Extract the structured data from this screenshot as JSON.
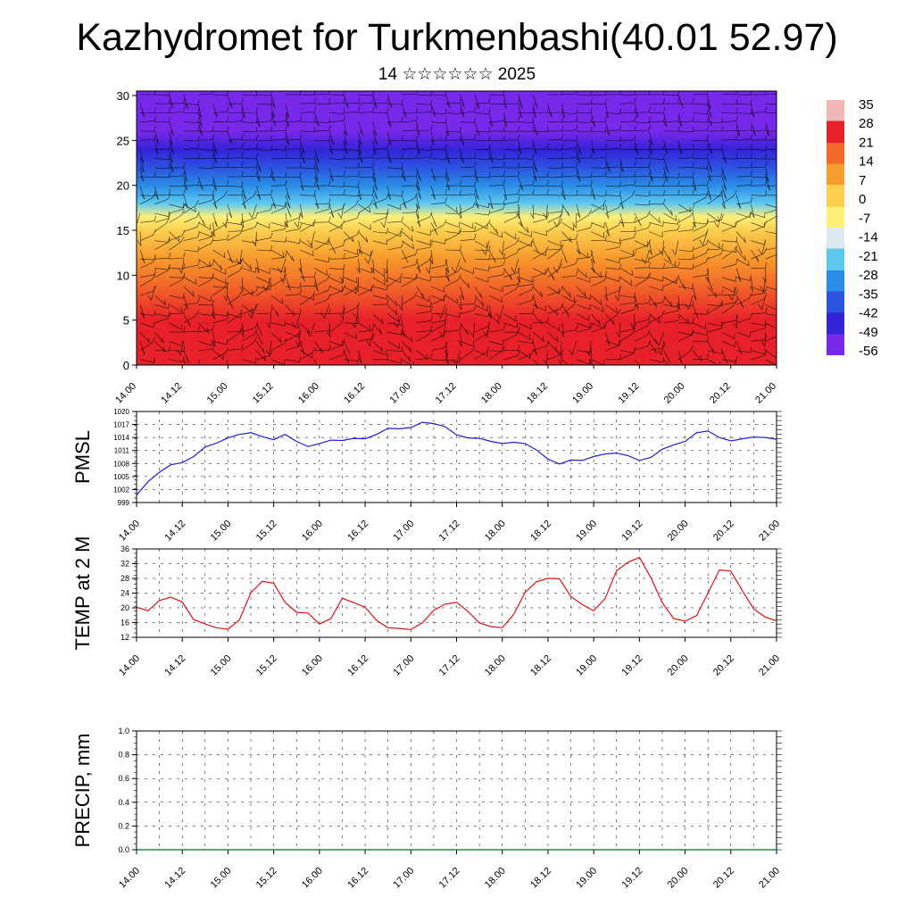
{
  "page": {
    "title": "Kazhydromet for Turkmenbashi(40.01 52.97)",
    "subtitle": "14 ☆☆☆☆☆☆ 2025"
  },
  "chart_data": [
    {
      "type": "heatmap",
      "id": "cross_section",
      "title": "",
      "ylim": [
        0,
        30.5
      ],
      "yticks": [
        "0",
        "5",
        "10",
        "15",
        "20",
        "25",
        "30"
      ],
      "xticks": [
        "14.00",
        "14.12",
        "15.00",
        "15.12",
        "16.00",
        "16.12",
        "17.00",
        "17.12",
        "18.00",
        "18.12",
        "19.00",
        "19.12",
        "20.00",
        "20.12",
        "21.00"
      ],
      "colorbar": {
        "labels": [
          "35",
          "28",
          "21",
          "14",
          "7",
          "0",
          "-7",
          "-14",
          "-21",
          "-28",
          "-35",
          "-42",
          "-49",
          "-56"
        ],
        "colors": [
          "#f2b8b8",
          "#e8202a",
          "#f26a2a",
          "#f79c2e",
          "#fccf50",
          "#fff07a",
          "#dce8ef",
          "#5ec8ef",
          "#2a8ce6",
          "#2c52e0",
          "#3424d8",
          "#7828e8"
        ]
      },
      "profile_by_height": [
        {
          "z": 0,
          "value": 30
        },
        {
          "z": 5,
          "value": 26
        },
        {
          "z": 9,
          "value": 20
        },
        {
          "z": 12,
          "value": 8
        },
        {
          "z": 15,
          "value": 0
        },
        {
          "z": 16.5,
          "value": -8
        },
        {
          "z": 18,
          "value": -22
        },
        {
          "z": 20,
          "value": -34
        },
        {
          "z": 22,
          "value": -45
        },
        {
          "z": 24,
          "value": -52
        },
        {
          "z": 26,
          "value": -58
        },
        {
          "z": 28,
          "value": -62
        },
        {
          "z": 30.5,
          "value": -64
        }
      ],
      "wind_barbs": "many"
    },
    {
      "type": "line",
      "id": "pmsl",
      "ylabel": "PMSL",
      "ylim": [
        999,
        1020
      ],
      "yticks": [
        "999",
        "1002",
        "1005",
        "1008",
        "1011",
        "1014",
        "1017",
        "1020"
      ],
      "xticks": [
        "14.00",
        "14.12",
        "15.00",
        "15.12",
        "16.00",
        "16.12",
        "17.00",
        "17.12",
        "18.00",
        "18.12",
        "19.00",
        "19.12",
        "20.00",
        "20.12",
        "21.00"
      ],
      "grid": true,
      "series": [
        {
          "color": "#1f1fd6",
          "x": [
            0,
            0.125,
            0.25,
            0.375,
            0.5,
            0.625,
            0.75,
            0.875,
            1.0,
            1.125,
            1.25,
            1.375,
            1.5,
            1.625,
            1.75,
            1.875,
            2.0,
            2.125,
            2.25,
            2.375,
            2.5,
            2.625,
            2.75,
            2.875,
            3.0,
            3.125,
            3.25,
            3.375,
            3.5,
            3.625,
            3.75,
            3.875,
            4.0,
            4.125,
            4.25,
            4.375,
            4.5,
            4.625,
            4.75,
            4.875,
            5.0,
            5.125,
            5.25,
            5.375,
            5.5,
            5.625,
            5.75,
            5.875,
            6.0,
            6.125,
            6.25,
            6.375,
            6.5,
            6.625,
            6.75,
            6.875,
            7.0
          ],
          "values": [
            1000.7,
            1003.8,
            1006.0,
            1007.7,
            1008.2,
            1009.6,
            1011.8,
            1012.7,
            1013.9,
            1014.7,
            1015.1,
            1014.2,
            1013.5,
            1014.7,
            1013.1,
            1011.9,
            1012.6,
            1013.4,
            1013.3,
            1013.8,
            1013.7,
            1014.7,
            1016.1,
            1016.0,
            1016.3,
            1017.5,
            1017.2,
            1016.5,
            1014.6,
            1013.9,
            1013.8,
            1013.1,
            1012.6,
            1012.9,
            1012.6,
            1011.1,
            1009.0,
            1007.9,
            1008.8,
            1008.7,
            1009.6,
            1010.2,
            1010.4,
            1009.8,
            1008.7,
            1009.4,
            1011.3,
            1012.3,
            1013.1,
            1015.1,
            1015.5,
            1014.0,
            1013.2,
            1013.7,
            1014.1,
            1014.0,
            1013.6
          ]
        }
      ]
    },
    {
      "type": "line",
      "id": "temp2m",
      "ylabel": "TEMP at 2 M",
      "ylim": [
        12,
        36
      ],
      "yticks": [
        "12",
        "16",
        "20",
        "24",
        "28",
        "32",
        "36"
      ],
      "xticks": [
        "14.00",
        "14.12",
        "15.00",
        "15.12",
        "16.00",
        "16.12",
        "17.00",
        "17.12",
        "18.00",
        "18.12",
        "19.00",
        "19.12",
        "20.00",
        "20.12",
        "21.00"
      ],
      "grid": true,
      "series": [
        {
          "color": "#e01414",
          "x": [
            0,
            0.125,
            0.25,
            0.375,
            0.5,
            0.625,
            0.75,
            0.875,
            1.0,
            1.125,
            1.25,
            1.375,
            1.5,
            1.625,
            1.75,
            1.875,
            2.0,
            2.125,
            2.25,
            2.375,
            2.5,
            2.625,
            2.75,
            2.875,
            3.0,
            3.125,
            3.25,
            3.375,
            3.5,
            3.625,
            3.75,
            3.875,
            4.0,
            4.125,
            4.25,
            4.375,
            4.5,
            4.625,
            4.75,
            4.875,
            5.0,
            5.125,
            5.25,
            5.375,
            5.5,
            5.625,
            5.75,
            5.875,
            6.0,
            6.125,
            6.25,
            6.375,
            6.5,
            6.625,
            6.75,
            6.875,
            7.0
          ],
          "values": [
            20.2,
            19.2,
            22.0,
            22.9,
            21.6,
            16.8,
            15.6,
            14.6,
            14.2,
            16.7,
            24.1,
            27.2,
            26.7,
            21.5,
            18.8,
            18.6,
            15.6,
            17.1,
            22.6,
            21.4,
            20.2,
            16.6,
            14.6,
            14.4,
            14.1,
            15.9,
            19.3,
            21.0,
            21.5,
            19.0,
            15.9,
            14.9,
            14.6,
            18.2,
            24.2,
            27.1,
            28.0,
            27.9,
            23.1,
            20.9,
            19.2,
            22.5,
            30.1,
            32.4,
            33.7,
            28.2,
            21.4,
            17.1,
            16.4,
            17.9,
            24.0,
            30.3,
            30.0,
            24.7,
            19.7,
            17.5,
            16.5
          ]
        }
      ]
    },
    {
      "type": "line",
      "id": "precip",
      "ylabel": "PRECIP, mm",
      "ylim": [
        0,
        1.0
      ],
      "yticks": [
        "0.0",
        "0.2",
        "0.4",
        "0.6",
        "0.8",
        "1.0"
      ],
      "xticks": [
        "14.00",
        "14.12",
        "15.00",
        "15.12",
        "16.00",
        "16.12",
        "17.00",
        "17.12",
        "18.00",
        "18.12",
        "19.00",
        "19.12",
        "20.00",
        "20.12",
        "21.00"
      ],
      "grid": true,
      "series": [
        {
          "color": "#0a6a2a",
          "x": [
            0,
            7
          ],
          "values": [
            0,
            0
          ]
        }
      ]
    }
  ]
}
